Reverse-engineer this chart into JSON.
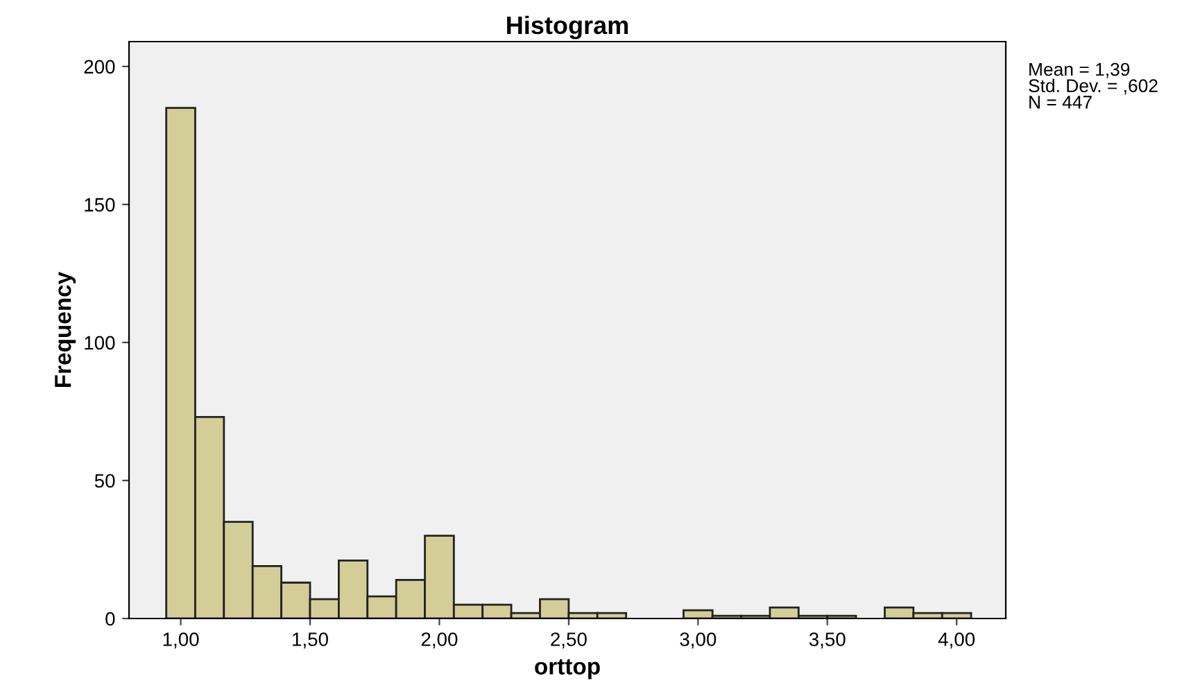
{
  "chart_data": {
    "type": "histogram",
    "title": "Histogram",
    "xlabel": "orttop",
    "ylabel": "Frequency",
    "bins": [
      0.944,
      1.056,
      1.167,
      1.278,
      1.389,
      1.5,
      1.611,
      1.722,
      1.833,
      1.944,
      2.056,
      2.167,
      2.278,
      2.389,
      2.5,
      2.611,
      2.722,
      2.833,
      2.944,
      3.056,
      3.167,
      3.278,
      3.389,
      3.5,
      3.611,
      3.722,
      3.833,
      3.944,
      4.056
    ],
    "values": [
      185,
      73,
      35,
      19,
      13,
      7,
      21,
      8,
      14,
      30,
      5,
      5,
      2,
      7,
      2,
      2,
      0,
      0,
      3,
      1,
      1,
      4,
      1,
      1,
      0,
      4,
      2,
      2
    ],
    "color": "#d3ce98",
    "xlim": [
      0.8,
      4.19
    ],
    "ylim": [
      0,
      209
    ],
    "xticks": [
      {
        "value": 1,
        "label": "1,00"
      },
      {
        "value": 1.5,
        "label": "1,50"
      },
      {
        "value": 2,
        "label": "2,00"
      },
      {
        "value": 2.5,
        "label": "2,50"
      },
      {
        "value": 3,
        "label": "3,00"
      },
      {
        "value": 3.5,
        "label": "3,50"
      },
      {
        "value": 4,
        "label": "4,00"
      }
    ],
    "yticks": [
      0,
      50,
      100,
      150,
      200
    ],
    "grid": false,
    "annotations": [
      "Mean = 1,39\nStd. Dev. = ,602\nN = 447"
    ]
  }
}
